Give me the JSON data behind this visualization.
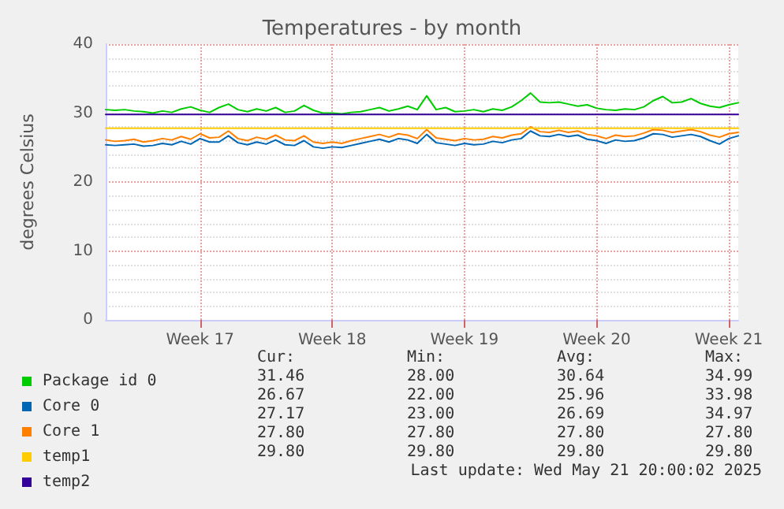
{
  "chart_data": {
    "type": "line",
    "title": "Temperatures - by month",
    "ylabel": "degrees Celsius",
    "categories": [
      null,
      null,
      null,
      null,
      null,
      null,
      null,
      null,
      null,
      null,
      "Week 17",
      null,
      null,
      null,
      null,
      null,
      null,
      null,
      null,
      null,
      null,
      null,
      null,
      null,
      "Week 18",
      null,
      null,
      null,
      null,
      null,
      null,
      null,
      null,
      null,
      null,
      null,
      null,
      null,
      "Week 19",
      null,
      null,
      null,
      null,
      null,
      null,
      null,
      null,
      null,
      null,
      null,
      null,
      null,
      "Week 20",
      null,
      null,
      null,
      null,
      null,
      null,
      null,
      null,
      null,
      null,
      null,
      null,
      null,
      "Week 21",
      null
    ],
    "series": [
      {
        "name": "Package id 0",
        "color": "#00cc00",
        "values": [
          30.5,
          30.4,
          30.5,
          30.3,
          30.2,
          30.0,
          30.3,
          30.1,
          30.6,
          30.9,
          30.4,
          30.1,
          30.8,
          31.3,
          30.5,
          30.2,
          30.6,
          30.3,
          30.8,
          30.1,
          30.3,
          31.1,
          30.4,
          30.0,
          30.0,
          29.9,
          30.1,
          30.2,
          30.5,
          30.8,
          30.3,
          30.6,
          31.0,
          30.5,
          32.5,
          30.5,
          30.8,
          30.2,
          30.3,
          30.5,
          30.2,
          30.6,
          30.4,
          30.9,
          31.8,
          32.9,
          31.6,
          31.5,
          31.6,
          31.3,
          31.0,
          31.2,
          30.7,
          30.5,
          30.4,
          30.6,
          30.5,
          30.9,
          31.8,
          32.4,
          31.5,
          31.6,
          32.1,
          31.4,
          31.0,
          30.8,
          31.2,
          31.5
        ]
      },
      {
        "name": "Core 0",
        "color": "#0066b3",
        "values": [
          25.4,
          25.3,
          25.4,
          25.5,
          25.2,
          25.3,
          25.6,
          25.4,
          25.9,
          25.5,
          26.3,
          25.8,
          25.8,
          26.7,
          25.7,
          25.4,
          25.8,
          25.5,
          26.1,
          25.4,
          25.3,
          26.0,
          25.1,
          24.9,
          25.1,
          25.0,
          25.3,
          25.6,
          25.9,
          26.2,
          25.8,
          26.3,
          26.1,
          25.6,
          26.9,
          25.7,
          25.5,
          25.3,
          25.6,
          25.4,
          25.5,
          25.9,
          25.7,
          26.1,
          26.3,
          27.4,
          26.7,
          26.6,
          26.9,
          26.6,
          26.8,
          26.2,
          26.0,
          25.6,
          26.1,
          25.9,
          26.0,
          26.4,
          27.0,
          26.9,
          26.5,
          26.7,
          26.9,
          26.6,
          26.0,
          25.5,
          26.3,
          26.7
        ]
      },
      {
        "name": "Core 1",
        "color": "#ff8000",
        "values": [
          26.1,
          25.9,
          26.0,
          26.2,
          25.8,
          26.0,
          26.3,
          26.1,
          26.6,
          26.2,
          27.0,
          26.4,
          26.5,
          27.4,
          26.3,
          26.0,
          26.5,
          26.2,
          26.8,
          26.1,
          26.0,
          26.7,
          25.8,
          25.6,
          25.8,
          25.6,
          26.0,
          26.3,
          26.6,
          26.9,
          26.5,
          27.0,
          26.8,
          26.3,
          27.6,
          26.4,
          26.2,
          26.0,
          26.3,
          26.1,
          26.2,
          26.6,
          26.4,
          26.8,
          27.0,
          28.0,
          27.3,
          27.2,
          27.5,
          27.2,
          27.4,
          26.9,
          26.7,
          26.3,
          26.8,
          26.6,
          26.7,
          27.1,
          27.6,
          27.5,
          27.2,
          27.4,
          27.6,
          27.3,
          26.8,
          26.5,
          27.0,
          27.2
        ]
      },
      {
        "name": "temp1",
        "color": "#ffcc00",
        "values": [
          27.8,
          27.8,
          27.8,
          27.8,
          27.8,
          27.8,
          27.8,
          27.8,
          27.8,
          27.8,
          27.8,
          27.8,
          27.8,
          27.8,
          27.8,
          27.8,
          27.8,
          27.8,
          27.8,
          27.8,
          27.8,
          27.8,
          27.8,
          27.8,
          27.8,
          27.8,
          27.8,
          27.8,
          27.8,
          27.8,
          27.8,
          27.8,
          27.8,
          27.8,
          27.8,
          27.8,
          27.8,
          27.8,
          27.8,
          27.8,
          27.8,
          27.8,
          27.8,
          27.8,
          27.8,
          27.8,
          27.8,
          27.8,
          27.8,
          27.8,
          27.8,
          27.8,
          27.8,
          27.8,
          27.8,
          27.8,
          27.8,
          27.8,
          27.8,
          27.8,
          27.8,
          27.8,
          27.8,
          27.8,
          27.8,
          27.8,
          27.8,
          27.8
        ]
      },
      {
        "name": "temp2",
        "color": "#330099",
        "values": [
          29.8,
          29.8,
          29.8,
          29.8,
          29.8,
          29.8,
          29.8,
          29.8,
          29.8,
          29.8,
          29.8,
          29.8,
          29.8,
          29.8,
          29.8,
          29.8,
          29.8,
          29.8,
          29.8,
          29.8,
          29.8,
          29.8,
          29.8,
          29.8,
          29.8,
          29.8,
          29.8,
          29.8,
          29.8,
          29.8,
          29.8,
          29.8,
          29.8,
          29.8,
          29.8,
          29.8,
          29.8,
          29.8,
          29.8,
          29.8,
          29.8,
          29.8,
          29.8,
          29.8,
          29.8,
          29.8,
          29.8,
          29.8,
          29.8,
          29.8,
          29.8,
          29.8,
          29.8,
          29.8,
          29.8,
          29.8,
          29.8,
          29.8,
          29.8,
          29.8,
          29.8,
          29.8,
          29.8,
          29.8,
          29.8,
          29.8,
          29.8,
          29.8
        ]
      }
    ],
    "ylim": [
      0,
      40
    ],
    "yticks": [
      0,
      10,
      20,
      30,
      40
    ],
    "grid": true,
    "legend": "bottom left",
    "marker": "none",
    "line_style": "solid",
    "annotations": [
      "Cur:",
      "Min:",
      "Avg:",
      "Max:",
      "31.46",
      "28.00",
      "30.64",
      "34.99",
      "26.67",
      "22.00",
      "25.96",
      "33.98",
      "27.17",
      "23.00",
      "26.69",
      "34.97",
      "27.80",
      "27.80",
      "27.80",
      "27.80",
      "29.80",
      "29.80",
      "29.80",
      "29.80",
      "Last update: Wed May 21 20:00:02 2025"
    ]
  }
}
